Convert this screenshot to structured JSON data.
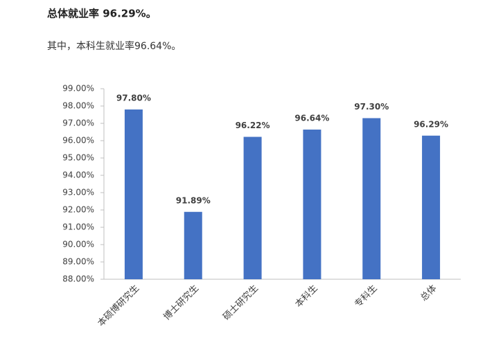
{
  "header": {
    "title": "总体就业率 96.29%。",
    "subtitle": "其中，本科生就业率96.64%。"
  },
  "chart_data": {
    "type": "bar",
    "categories": [
      "本硕博研究生",
      "博士研究生",
      "硕士研究生",
      "本科生",
      "专科生",
      "总体"
    ],
    "values": [
      97.8,
      91.89,
      96.22,
      96.64,
      97.3,
      96.29
    ],
    "value_labels": [
      "97.80%",
      "91.89%",
      "96.22%",
      "96.64%",
      "97.30%",
      "96.29%"
    ],
    "color": "#4472c4",
    "ylim": [
      88,
      99
    ],
    "yticks": [
      {
        "value": 88,
        "label": "88.00%"
      },
      {
        "value": 89,
        "label": "89.00%"
      },
      {
        "value": 90,
        "label": "90.00%"
      },
      {
        "value": 91,
        "label": "91.00%"
      },
      {
        "value": 92,
        "label": "92.00%"
      },
      {
        "value": 93,
        "label": "93.00%"
      },
      {
        "value": 94,
        "label": "94.00%"
      },
      {
        "value": 95,
        "label": "95.00%"
      },
      {
        "value": 96,
        "label": "96.00%"
      },
      {
        "value": 97,
        "label": "97.00%"
      },
      {
        "value": 98,
        "label": "98.00%"
      },
      {
        "value": 99,
        "label": "99.00%"
      }
    ],
    "grid": false
  }
}
